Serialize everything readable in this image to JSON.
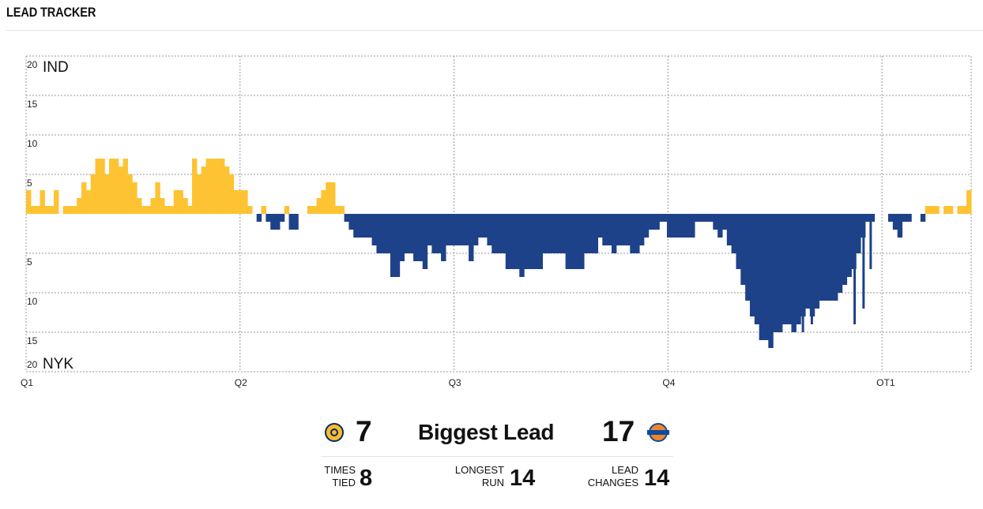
{
  "header": {
    "title": "LEAD TRACKER"
  },
  "colors": {
    "home": "#fdc332",
    "away": "#1e4289",
    "grid": "#999999"
  },
  "icons": {
    "home_logo": "pacers-logo-icon",
    "away_logo": "knicks-logo-icon"
  },
  "chart_data": {
    "type": "bar",
    "home_team": "IND",
    "away_team": "NYK",
    "ylim": [
      -20,
      20
    ],
    "yticks": [
      "20",
      "15",
      "10",
      "5",
      "",
      "5",
      "10",
      "15",
      "20"
    ],
    "ytick_values": [
      20,
      15,
      10,
      5,
      0,
      -5,
      -10,
      -15,
      -20
    ],
    "x_labels": [
      "Q1",
      "Q2",
      "Q3",
      "Q4",
      "OT1"
    ],
    "x_label_positions_minutes": [
      0,
      12,
      24,
      36,
      48
    ],
    "x_range_minutes": [
      0,
      53
    ],
    "grid": true,
    "values": [
      3,
      1,
      1,
      3,
      1,
      1,
      3,
      0,
      1,
      1,
      1,
      2,
      4,
      3,
      5,
      7,
      7,
      5,
      7,
      7,
      6,
      7,
      5,
      4,
      2,
      1,
      1,
      2,
      4,
      2,
      1,
      1,
      3,
      3,
      2,
      1,
      7,
      5,
      6,
      7,
      7,
      7,
      7,
      6,
      5,
      3,
      3,
      3,
      1,
      0,
      -1,
      1,
      -1,
      -2,
      -2,
      -1,
      1,
      -2,
      -2,
      0,
      0,
      1,
      1,
      2,
      3,
      4,
      4,
      1,
      1,
      -1,
      -2,
      -3,
      -3,
      -3,
      -3,
      -4,
      -5,
      -5,
      -5,
      -8,
      -8,
      -6,
      -5,
      -5,
      -6,
      -6,
      -7,
      -4,
      -5,
      -5,
      -6,
      -4,
      -4,
      -4,
      -4,
      -4,
      -6,
      -4,
      -3,
      -3,
      -4,
      -5,
      -5,
      -5,
      -7,
      -7,
      -7,
      -8,
      -7,
      -7,
      -7,
      -7,
      -5,
      -5,
      -5,
      -5,
      -5,
      -7,
      -7,
      -7,
      -7,
      -5,
      -5,
      -5,
      -3,
      -4,
      -4,
      -5,
      -4,
      -4,
      -4,
      -5,
      -5,
      -4,
      -3,
      -2,
      -2,
      -1,
      -1,
      -3,
      -3,
      -3,
      -3,
      -3,
      -3,
      -1,
      -1,
      -1,
      -1,
      -2,
      -3,
      -2,
      -4,
      -5,
      -7,
      -9,
      -11,
      -13,
      -14,
      -16,
      -16,
      -17,
      -15,
      -15,
      -14,
      -14,
      -15,
      -14,
      -13,
      -12,
      -13,
      -12,
      -11,
      -11,
      -11,
      -11,
      -10,
      -9,
      -8,
      -7,
      -5,
      -3,
      -1,
      -1,
      0,
      0,
      0,
      -1,
      -2,
      -3,
      -1,
      -1,
      0,
      0,
      -1,
      1,
      1,
      1,
      0,
      1,
      1,
      0,
      1,
      1,
      3
    ],
    "extras": [
      {
        "minute": 35.4,
        "value": -2
      },
      {
        "minute": 41.7,
        "value": -15
      },
      {
        "minute": 43.5,
        "value": -15
      },
      {
        "minute": 44.0,
        "value": -14
      },
      {
        "minute": 46.4,
        "value": -14
      },
      {
        "minute": 46.9,
        "value": -12
      },
      {
        "minute": 47.3,
        "value": -7
      }
    ]
  },
  "stats": {
    "biggest_lead_label": "Biggest Lead",
    "biggest_lead_home": "7",
    "biggest_lead_away": "17",
    "times_tied_label": "TIMES\nTIED",
    "times_tied_value": "8",
    "longest_run_label": "LONGEST\nRUN",
    "longest_run_value": "14",
    "lead_changes_label": "LEAD\nCHANGES",
    "lead_changes_value": "14"
  }
}
